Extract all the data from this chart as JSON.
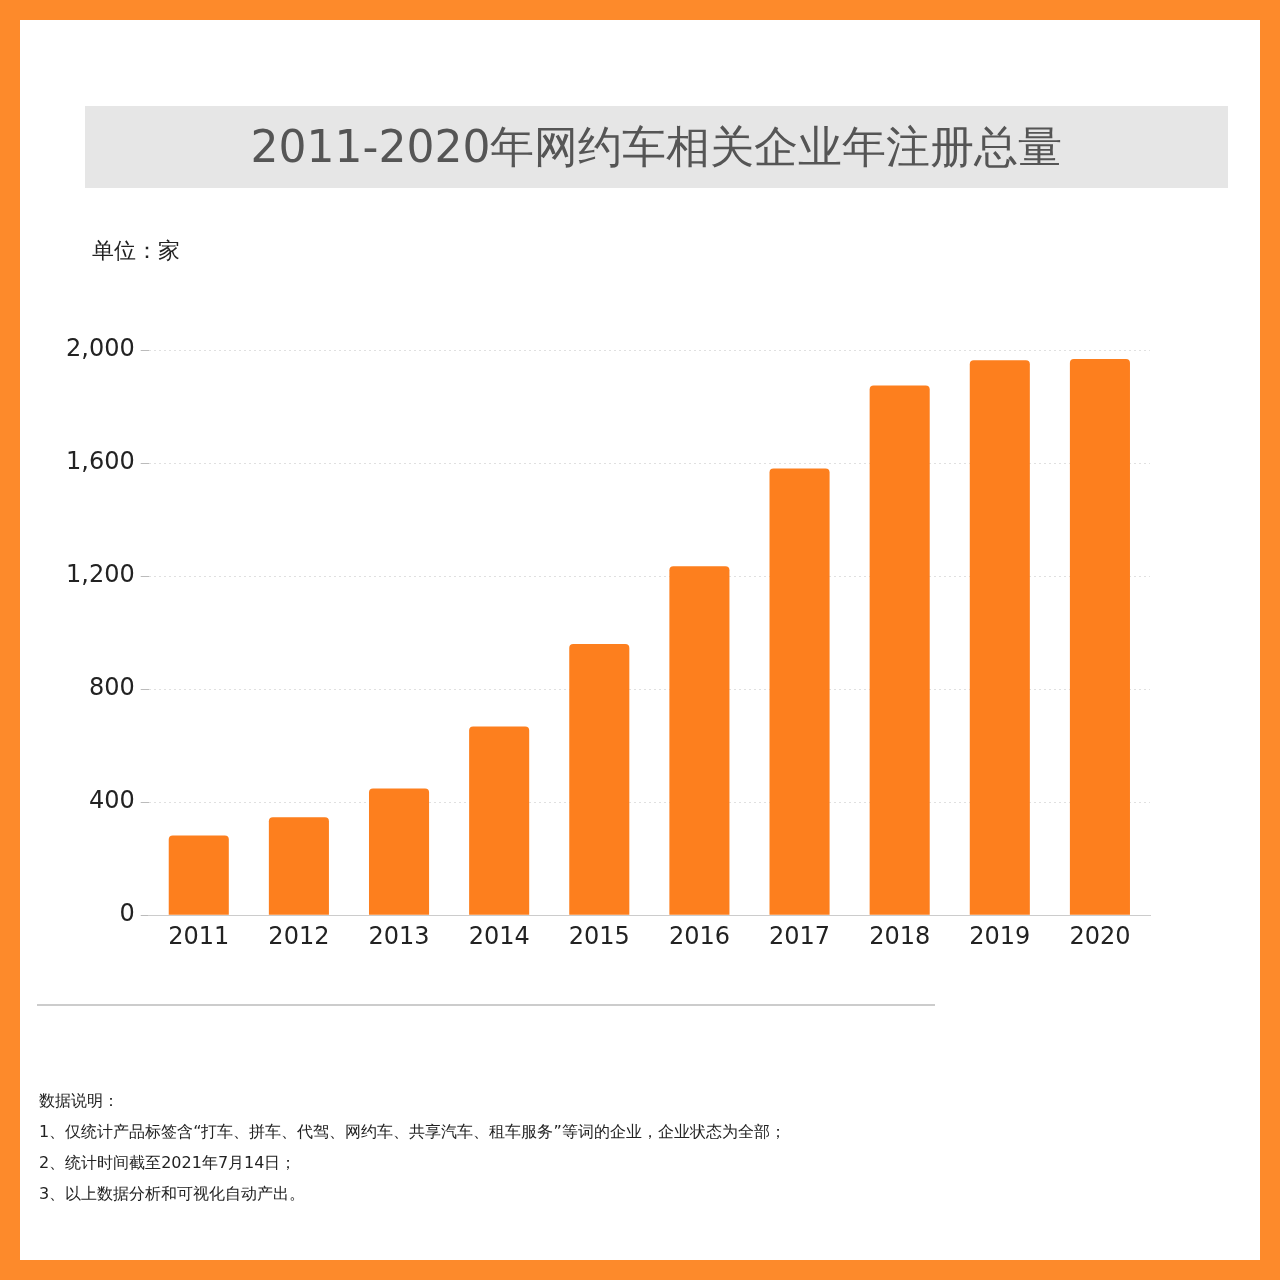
{
  "chart_data": {
    "type": "bar",
    "title": "2011-2020年网约车相关企业年注册总量",
    "ylabel": "单位：家",
    "categories": [
      "2011",
      "2012",
      "2013",
      "2014",
      "2015",
      "2016",
      "2017",
      "2018",
      "2019",
      "2020"
    ],
    "values": [
      282,
      347,
      448,
      668,
      960,
      1235,
      1581,
      1874,
      1964,
      1968
    ],
    "color": "#fd7f1e",
    "ylim": [
      0,
      2000
    ],
    "yticks": [
      0,
      {
        "value": 400,
        "label": "400"
      },
      {
        "value": 800,
        "label": "800"
      },
      {
        "value": 1200,
        "label": "1,200"
      },
      {
        "value": 1600,
        "label": "1,600"
      },
      {
        "value": 2000,
        "label": "2,000"
      }
    ],
    "grid": "y",
    "annotations": [
      "数据说明：",
      "1、仅统计产品标签含“打车、拼车、代驾、网约车、共享汽车、租车服务”等词的企业，企业状态为全部；",
      "2、统计时间截至2021年7月14日；",
      "3、以上数据分析和可视化自动产出。"
    ]
  }
}
